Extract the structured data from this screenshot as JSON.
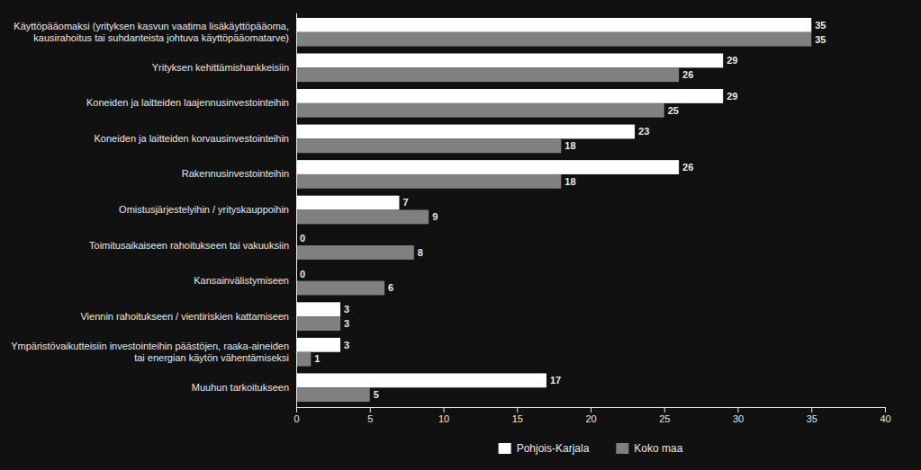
{
  "chart_data": {
    "type": "bar",
    "orientation": "horizontal",
    "categories": [
      "Käyttöpääomaksi (yrityksen kasvun vaatima lisäkäyttöpääoma,\nkausirahoitus tai suhdanteista johtuva käyttöpääomatarve)",
      "Yrityksen kehittämishankkeisiin",
      "Koneiden ja laitteiden laajennusinvestointeihin",
      "Koneiden ja laitteiden korvausinvestointeihin",
      "Rakennusinvestointeihin",
      "Omistusjärjestelyihin / yrityskauppoihin",
      "Toimitusaikaiseen rahoitukseen tai vakuuksiin",
      "Kansainvälistymiseen",
      "Viennin rahoitukseen / vientiriskien kattamiseen",
      "Ympäristövaikutteisiin investointeihin päästöjen, raaka-aineiden\ntai energian käytön vähentämiseksi",
      "Muuhun tarkoitukseen"
    ],
    "series": [
      {
        "name": "Pohjois-Karjala",
        "color": "#ffffff",
        "values": [
          35,
          29,
          29,
          23,
          26,
          7,
          0,
          0,
          3,
          3,
          17
        ]
      },
      {
        "name": "Koko maa",
        "color": "#808080",
        "values": [
          35,
          26,
          25,
          18,
          18,
          9,
          8,
          6,
          3,
          1,
          5
        ]
      }
    ],
    "xlim": [
      0,
      40
    ],
    "xticks": [
      0,
      5,
      10,
      15,
      20,
      25,
      30,
      35,
      40
    ],
    "data_labels": true,
    "grid": false,
    "legend": "bottom"
  }
}
